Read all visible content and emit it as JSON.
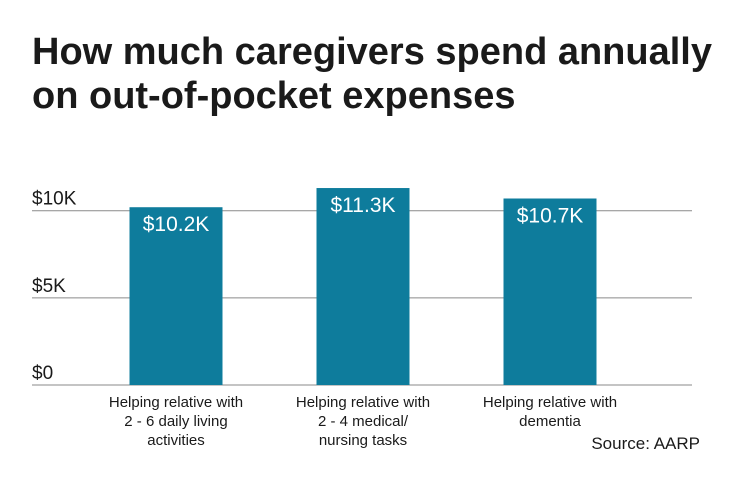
{
  "title": "How much caregivers spend annually on out-of-pocket expenses",
  "source": "Source: AARP",
  "colors": {
    "bar": "#0e7c9c",
    "grid": "#8a8a8a",
    "label": "#ffffff"
  },
  "chart_data": {
    "type": "bar",
    "title": "How much caregivers spend annually on out-of-pocket expenses",
    "categories": [
      [
        "Helping relative with",
        "2 - 6 daily living",
        "activities"
      ],
      [
        "Helping relative with",
        "2 - 4 medical/",
        "nursing tasks"
      ],
      [
        "Helping relative with",
        "dementia"
      ]
    ],
    "values": [
      10.2,
      11.3,
      10.7
    ],
    "value_labels": [
      "$10.2K",
      "$11.3K",
      "$10.7K"
    ],
    "yticks": [
      0,
      5,
      10
    ],
    "ytick_labels": [
      "$0",
      "$5K",
      "$10K"
    ],
    "ylim": [
      0,
      11.3
    ],
    "grid": true,
    "xlabel": "",
    "ylabel": ""
  }
}
